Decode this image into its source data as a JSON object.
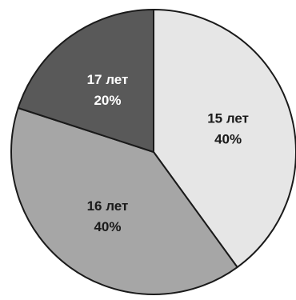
{
  "chart_data": {
    "type": "pie",
    "slices": [
      {
        "category": "15 лет",
        "value": 40,
        "value_label": "40%",
        "color": "#e6e6e6",
        "label_color": "#1a1a1a"
      },
      {
        "category": "16 лет",
        "value": 40,
        "value_label": "40%",
        "color": "#a6a6a6",
        "label_color": "#1a1a1a"
      },
      {
        "category": "17 лет",
        "value": 20,
        "value_label": "20%",
        "color": "#595959",
        "label_color": "#ffffff"
      }
    ],
    "start_angle_deg": 0,
    "direction": "clockwise",
    "outline_color": "#1a1a1a"
  }
}
